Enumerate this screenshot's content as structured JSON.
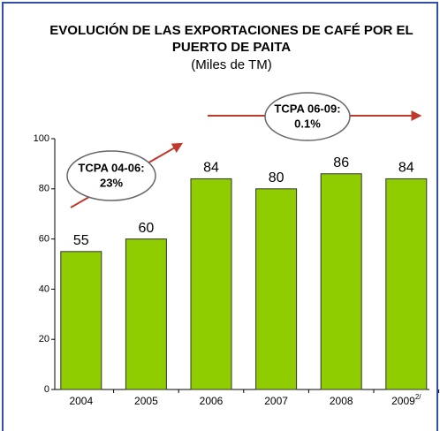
{
  "chart_data": {
    "type": "bar",
    "title": [
      "EVOLUCIÓN DE LAS EXPORTACIONES DE CAFÉ POR EL",
      "PUERTO DE PAITA"
    ],
    "subtitle": "(Miles de TM)",
    "categories": [
      "2004",
      "2005",
      "2006",
      "2007",
      "2008",
      "2009"
    ],
    "category_superscripts": [
      null,
      null,
      null,
      null,
      null,
      "2/"
    ],
    "values": [
      55,
      60,
      84,
      80,
      86,
      84
    ],
    "color": "#8fcc00",
    "ylim": [
      0,
      100
    ],
    "yticks": [
      0,
      20,
      40,
      60,
      80,
      100
    ],
    "annotations": [
      [
        "TCPA 04-06:",
        "23%"
      ],
      [
        "TCPA 06-09:",
        "0.1%"
      ]
    ]
  }
}
